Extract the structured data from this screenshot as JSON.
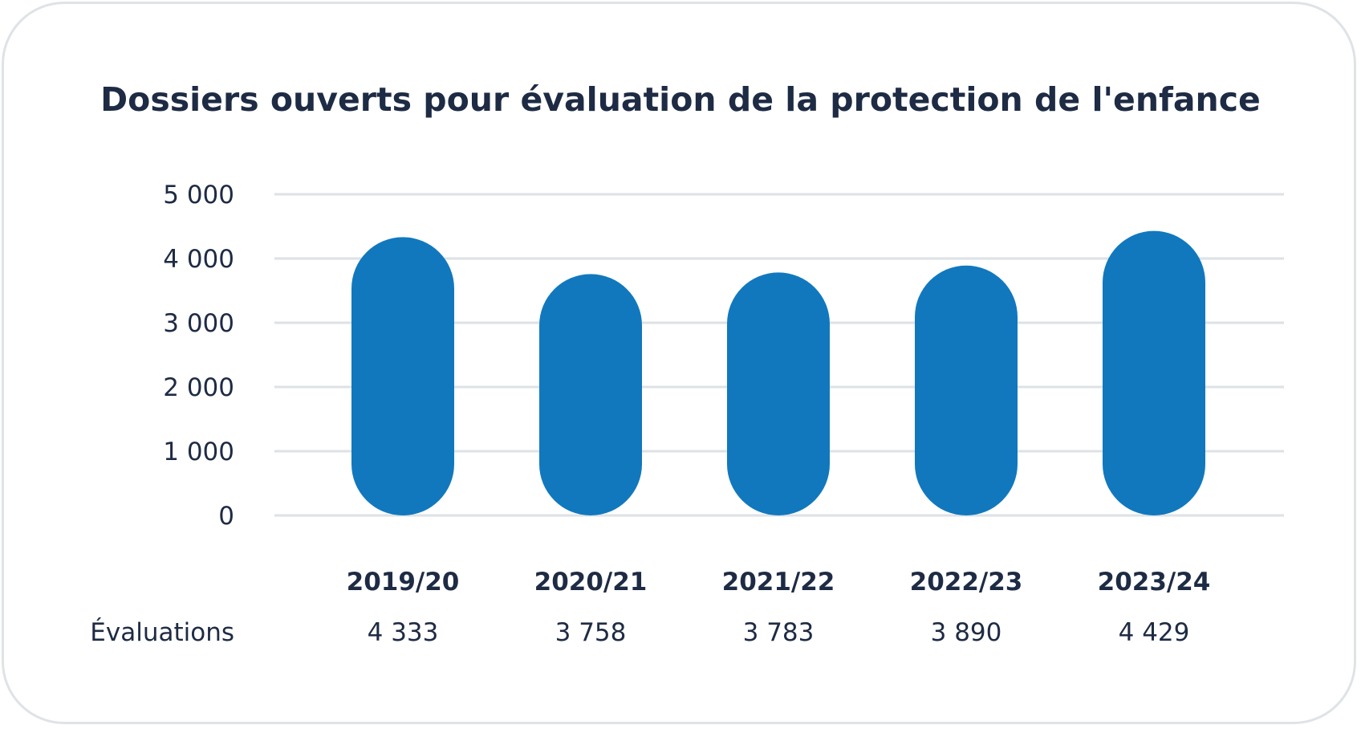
{
  "colors": {
    "bar": "#1178be",
    "grid": "#dde2e5",
    "text": "#1e2b44",
    "border": "#dfe3e6"
  },
  "chart_data": {
    "type": "bar",
    "title": "Dossiers ouverts pour évaluation de la protection de l'enfance",
    "categories": [
      "2019/20",
      "2020/21",
      "2021/22",
      "2022/23",
      "2023/24"
    ],
    "values": [
      4333,
      3758,
      3783,
      3890,
      4429
    ],
    "value_labels": [
      "4 333",
      "3 758",
      "3 783",
      "3 890",
      "4 429"
    ],
    "row_label": "Évaluations",
    "ylim": [
      0,
      5000
    ],
    "yticks": [
      0,
      1000,
      2000,
      3000,
      4000,
      5000
    ],
    "ytick_labels": [
      "0",
      "1 000",
      "2 000",
      "3 000",
      "4 000",
      "5 000"
    ],
    "grid": true,
    "legend": "none"
  }
}
